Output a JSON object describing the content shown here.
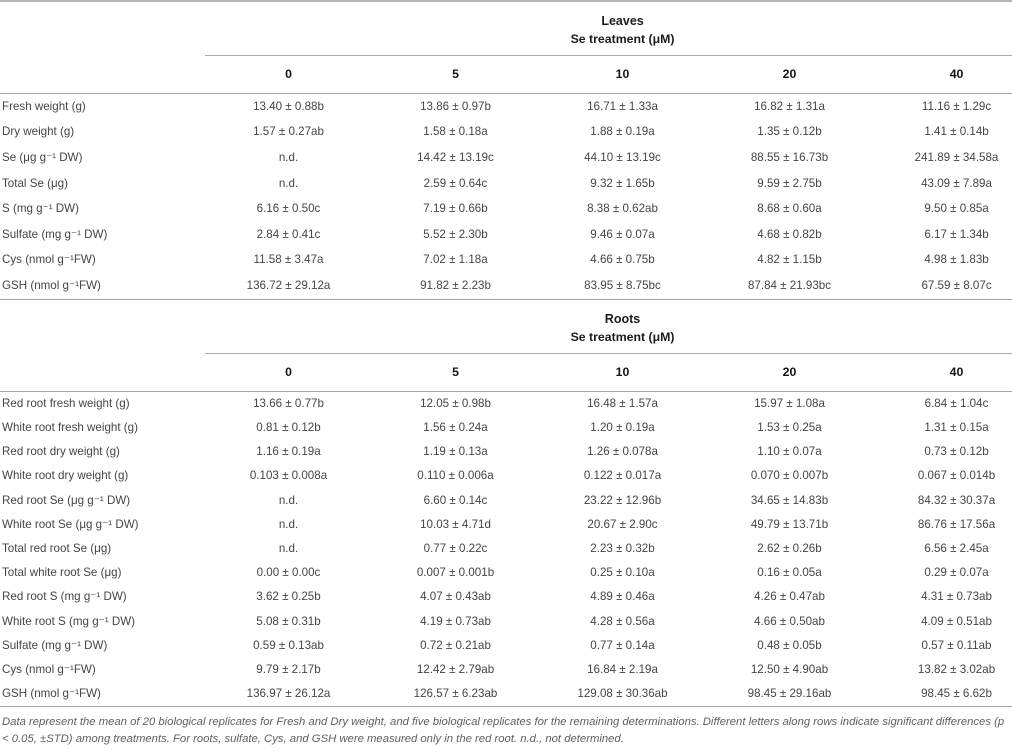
{
  "colors": {
    "rule_gray": "#a6a6a6",
    "top_rule_gray": "#b5b5b5",
    "text_dark": "#1c1c1c",
    "text_body": "#454545",
    "footnote_gray": "#5f5f5f"
  },
  "tables": [
    {
      "title": "Leaves",
      "subtitle": "Se treatment (μM)",
      "columns": [
        "0",
        "5",
        "10",
        "20",
        "40"
      ],
      "rows": [
        {
          "label": "Fresh weight (g)",
          "values": [
            "13.40 ± 0.88b",
            "13.86 ± 0.97b",
            "16.71 ± 1.33a",
            "16.82 ± 1.31a",
            "11.16 ± 1.29c"
          ]
        },
        {
          "label": "Dry weight (g)",
          "values": [
            "1.57 ± 0.27ab",
            "1.58 ± 0.18a",
            "1.88 ± 0.19a",
            "1.35 ± 0.12b",
            "1.41 ± 0.14b"
          ]
        },
        {
          "label": "Se (μg g⁻¹ DW)",
          "values": [
            "n.d.",
            "14.42 ± 13.19c",
            "44.10 ± 13.19c",
            "88.55 ± 16.73b",
            "241.89 ± 34.58a"
          ]
        },
        {
          "label": "Total Se (μg)",
          "values": [
            "n.d.",
            "2.59 ± 0.64c",
            "9.32 ± 1.65b",
            "9.59 ± 2.75b",
            "43.09 ± 7.89a"
          ]
        },
        {
          "label": "S (mg g⁻¹ DW)",
          "values": [
            "6.16 ± 0.50c",
            "7.19 ± 0.66b",
            "8.38 ± 0.62ab",
            "8.68 ± 0.60a",
            "9.50 ± 0.85a"
          ]
        },
        {
          "label": "Sulfate (mg g⁻¹ DW)",
          "values": [
            "2.84 ± 0.41c",
            "5.52 ± 2.30b",
            "9.46 ± 0.07a",
            "4.68 ± 0.82b",
            "6.17 ± 1.34b"
          ]
        },
        {
          "label": "Cys (nmol g⁻¹FW)",
          "values": [
            "11.58 ± 3.47a",
            "7.02 ± 1.18a",
            "4.66 ± 0.75b",
            "4.82 ± 1.15b",
            "4.98 ± 1.83b"
          ]
        },
        {
          "label": "GSH (nmol g⁻¹FW)",
          "values": [
            "136.72 ± 29.12a",
            "91.82 ± 2.23b",
            "83.95 ± 8.75bc",
            "87.84 ± 21.93bc",
            "67.59 ± 8.07c"
          ]
        }
      ]
    },
    {
      "title": "Roots",
      "subtitle": "Se treatment (μM)",
      "columns": [
        "0",
        "5",
        "10",
        "20",
        "40"
      ],
      "rows": [
        {
          "label": "Red root fresh weight (g)",
          "values": [
            "13.66 ± 0.77b",
            "12.05 ± 0.98b",
            "16.48 ± 1.57a",
            "15.97 ± 1.08a",
            "6.84 ± 1.04c"
          ]
        },
        {
          "label": "White root fresh weight (g)",
          "values": [
            "0.81 ± 0.12b",
            "1.56 ± 0.24a",
            "1.20 ± 0.19a",
            "1.53 ± 0.25a",
            "1.31 ± 0.15a"
          ]
        },
        {
          "label": "Red root dry weight (g)",
          "values": [
            "1.16 ± 0.19a",
            "1.19 ± 0.13a",
            "1.26 ± 0.078a",
            "1.10 ± 0.07a",
            "0.73 ± 0.12b"
          ]
        },
        {
          "label": "White root dry weight (g)",
          "values": [
            "0.103 ± 0.008a",
            "0.110 ± 0.006a",
            "0.122 ± 0.017a",
            "0.070 ± 0.007b",
            "0.067 ± 0.014b"
          ]
        },
        {
          "label": "Red root Se (μg g⁻¹ DW)",
          "values": [
            "n.d.",
            "6.60 ± 0.14c",
            "23.22 ± 12.96b",
            "34.65 ± 14.83b",
            "84.32 ± 30.37a"
          ]
        },
        {
          "label": "White root Se (μg g⁻¹ DW)",
          "values": [
            "n.d.",
            "10.03 ± 4.71d",
            "20.67 ± 2.90c",
            "49.79 ± 13.71b",
            "86.76 ± 17.56a"
          ]
        },
        {
          "label": "Total red root Se (μg)",
          "values": [
            "n.d.",
            "0.77 ± 0.22c",
            "2.23 ± 0.32b",
            "2.62 ± 0.26b",
            "6.56 ± 2.45a"
          ]
        },
        {
          "label": "Total white root Se (μg)",
          "values": [
            "0.00 ± 0.00c",
            "0.007 ± 0.001b",
            "0.25 ± 0.10a",
            "0.16 ± 0.05a",
            "0.29 ± 0.07a"
          ]
        },
        {
          "label": "Red root S (mg g⁻¹ DW)",
          "values": [
            "3.62 ± 0.25b",
            "4.07 ± 0.43ab",
            "4.89 ± 0.46a",
            "4.26 ± 0.47ab",
            "4.31 ± 0.73ab"
          ]
        },
        {
          "label": "White root S (mg g⁻¹ DW)",
          "values": [
            "5.08 ± 0.31b",
            "4.19 ± 0.73ab",
            "4.28 ± 0.56a",
            "4.66 ± 0.50ab",
            "4.09 ± 0.51ab"
          ]
        },
        {
          "label": "Sulfate (mg g⁻¹ DW)",
          "values": [
            "0.59 ± 0.13ab",
            "0.72 ± 0.21ab",
            "0.77 ± 0.14a",
            "0.48 ± 0.05b",
            "0.57 ± 0.11ab"
          ]
        },
        {
          "label": "Cys (nmol g⁻¹FW)",
          "values": [
            "9.79 ± 2.17b",
            "12.42 ± 2.79ab",
            "16.84 ± 2.19a",
            "12.50 ± 4.90ab",
            "13.82 ± 3.02ab"
          ]
        },
        {
          "label": "GSH (nmol g⁻¹FW)",
          "values": [
            "136.97 ± 26.12a",
            "126.57 ± 6.23ab",
            "129.08 ± 30.36ab",
            "98.45 ± 29.16ab",
            "98.45 ± 6.62b"
          ]
        }
      ]
    }
  ],
  "footnote": "Data represent the mean of 20 biological replicates for Fresh and Dry weight, and five biological replicates for the remaining determinations. Different letters along rows indicate significant differences (p < 0.05, ±STD) among treatments. For roots, sulfate, Cys, and GSH were measured only in the red root. n.d., not determined."
}
